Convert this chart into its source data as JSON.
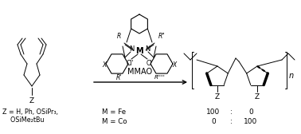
{
  "bg_color": "#ffffff",
  "text_color": "#000000",
  "figsize": [
    3.78,
    1.68
  ],
  "dpi": 100,
  "bottom_labels": {
    "z_label": "Z = H, Ph, OSiPr₃,\n    OSiMe₂tBu",
    "mfe_label": "M = Fe",
    "mco_label": "M = Co"
  },
  "catalyst_label": "MMAO",
  "product_n": "n"
}
